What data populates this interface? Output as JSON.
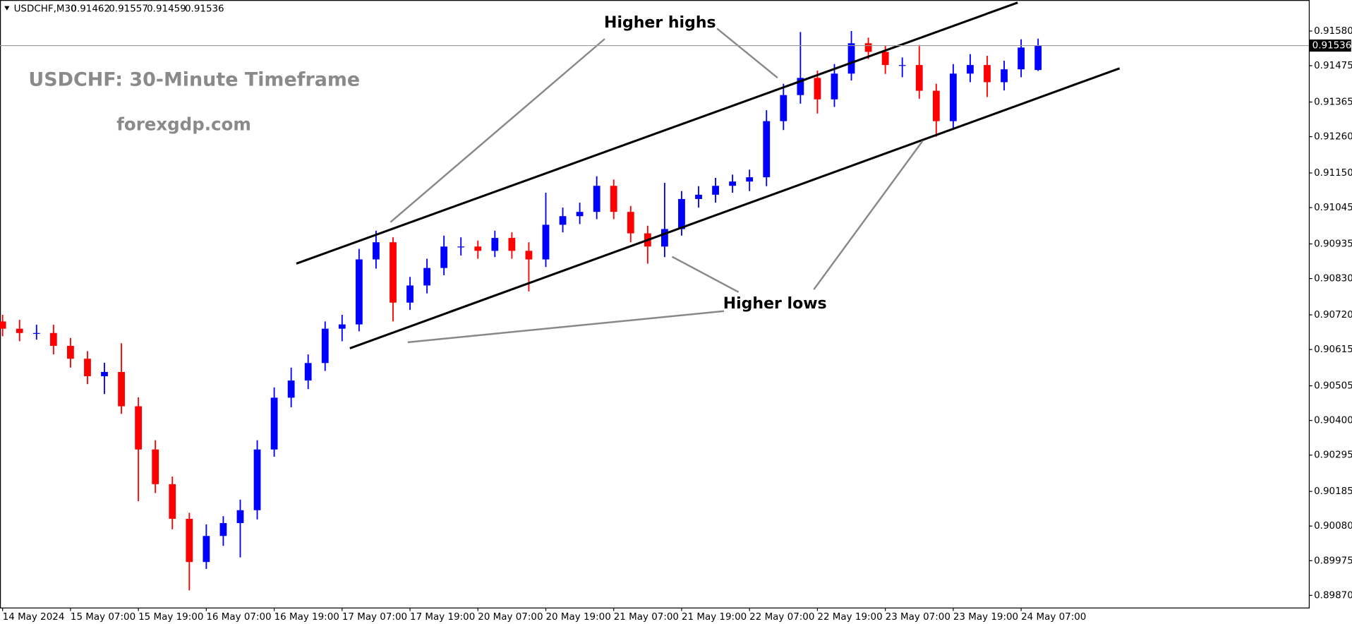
{
  "chart_data": {
    "type": "candlestick",
    "header": {
      "symbol": "USDCHF,M30",
      "open": 0.91462,
      "high": 0.91557,
      "low": 0.91459,
      "close": 0.91536
    },
    "title": "USDCHF: 30-Minute Timeframe",
    "subtitle": "forexgdp.com",
    "annotations": [
      "Higher highs",
      "Higher lows"
    ],
    "current_price": 0.91536,
    "up_color": "#0000ff",
    "down_color": "#ff0000",
    "categories": [
      "14 May 2024",
      null,
      null,
      null,
      "15 May 07:00",
      null,
      null,
      null,
      "15 May 19:00",
      null,
      null,
      null,
      "16 May 07:00",
      null,
      null,
      null,
      "16 May 19:00",
      null,
      null,
      null,
      "17 May 07:00",
      null,
      null,
      null,
      "17 May 19:00",
      null,
      null,
      null,
      "20 May 07:00",
      null,
      null,
      null,
      "20 May 19:00",
      null,
      null,
      null,
      "21 May 07:00",
      null,
      null,
      null,
      "21 May 19:00",
      null,
      null,
      null,
      "22 May 07:00",
      null,
      null,
      null,
      "22 May 19:00",
      null,
      null,
      null,
      "23 May 07:00",
      null,
      null,
      null,
      "23 May 19:00",
      null,
      null,
      null,
      "24 May 07:00",
      null
    ],
    "open": [
      0.907,
      0.90678,
      0.90665,
      0.90665,
      0.90626,
      0.90587,
      0.90534,
      0.90547,
      0.90443,
      0.90312,
      0.90207,
      0.90102,
      0.89971,
      0.9005,
      0.90089,
      0.90128,
      0.90312,
      0.90469,
      0.90521,
      0.90574,
      0.90678,
      0.90691,
      0.90888,
      0.9094,
      0.90757,
      0.90809,
      0.90862,
      0.90927,
      0.90927,
      0.90914,
      0.90953,
      0.90914,
      0.90888,
      0.90993,
      0.91019,
      0.91032,
      0.91111,
      0.91032,
      0.90967,
      0.90927,
      0.9098,
      0.91071,
      0.91084,
      0.91111,
      0.91124,
      0.91137,
      0.91307,
      0.91386,
      0.91438,
      0.91373,
      0.91451,
      0.91543,
      0.91517,
      0.91477,
      0.91477,
      0.91399,
      0.91307,
      0.91451,
      0.91477,
      0.91425,
      0.91464,
      0.91462
    ],
    "high": [
      0.9072,
      0.90705,
      0.9069,
      0.9069,
      0.9065,
      0.9061,
      0.90575,
      0.90634,
      0.9047,
      0.9034,
      0.9023,
      0.9012,
      0.90085,
      0.9011,
      0.9016,
      0.9034,
      0.905,
      0.9056,
      0.906,
      0.907,
      0.9072,
      0.9092,
      0.90975,
      0.90955,
      0.90835,
      0.9089,
      0.9096,
      0.90955,
      0.90945,
      0.90975,
      0.9097,
      0.9094,
      0.9109,
      0.91045,
      0.9106,
      0.9114,
      0.9113,
      0.9105,
      0.9099,
      0.9112,
      0.91095,
      0.9111,
      0.91135,
      0.91145,
      0.9116,
      0.9134,
      0.9142,
      0.91577,
      0.9146,
      0.9148,
      0.9158,
      0.9156,
      0.91535,
      0.915,
      0.91538,
      0.9142,
      0.9148,
      0.9151,
      0.91505,
      0.9149,
      0.91555,
      0.91557
    ],
    "low": [
      0.90655,
      0.9064,
      0.90645,
      0.906,
      0.9056,
      0.9051,
      0.9048,
      0.9042,
      0.90155,
      0.9018,
      0.9007,
      0.89885,
      0.8995,
      0.9002,
      0.89985,
      0.901,
      0.9029,
      0.9044,
      0.90495,
      0.9055,
      0.9064,
      0.9067,
      0.9086,
      0.907,
      0.90735,
      0.90785,
      0.9084,
      0.909,
      0.9089,
      0.90895,
      0.9089,
      0.90791,
      0.90865,
      0.9097,
      0.90995,
      0.9101,
      0.9101,
      0.9094,
      0.90875,
      0.90895,
      0.9096,
      0.91045,
      0.9106,
      0.9109,
      0.91095,
      0.9111,
      0.9128,
      0.9136,
      0.9133,
      0.9135,
      0.9143,
      0.91495,
      0.9145,
      0.9144,
      0.91375,
      0.9126,
      0.91285,
      0.91425,
      0.9138,
      0.914,
      0.9144,
      0.91459
    ],
    "close": [
      0.90678,
      0.90665,
      0.90665,
      0.90626,
      0.90587,
      0.90534,
      0.90547,
      0.90443,
      0.90312,
      0.90207,
      0.90102,
      0.89971,
      0.9005,
      0.90089,
      0.90128,
      0.90312,
      0.90469,
      0.90521,
      0.90574,
      0.90678,
      0.90691,
      0.90888,
      0.9094,
      0.90757,
      0.90809,
      0.90862,
      0.90927,
      0.90927,
      0.90914,
      0.90953,
      0.90914,
      0.90888,
      0.90993,
      0.91019,
      0.91032,
      0.91111,
      0.91032,
      0.90967,
      0.90927,
      0.9098,
      0.91071,
      0.91084,
      0.91111,
      0.91124,
      0.91137,
      0.91307,
      0.91386,
      0.91438,
      0.91373,
      0.91451,
      0.91543,
      0.91517,
      0.91477,
      0.91477,
      0.91399,
      0.91307,
      0.91451,
      0.91477,
      0.91425,
      0.91464,
      0.9153,
      0.91536
    ],
    "ylim": [
      0.89833,
      0.91674
    ],
    "yticks": [
      {
        "value": 0.9158,
        "label": "0.91580"
      },
      0.91475,
      0.91365,
      {
        "value": 0.9126,
        "label": "0.91260"
      },
      {
        "value": 0.9115,
        "label": "0.91150"
      },
      0.91045,
      0.90935,
      {
        "value": 0.9083,
        "label": "0.90830"
      },
      {
        "value": 0.9072,
        "label": "0.90720"
      },
      0.90615,
      0.90505,
      {
        "value": 0.904,
        "label": "0.90400"
      },
      0.90295,
      0.90185,
      {
        "value": 0.9008,
        "label": "0.90080"
      },
      0.89975,
      {
        "value": 0.8987,
        "label": "0.89870"
      }
    ]
  }
}
